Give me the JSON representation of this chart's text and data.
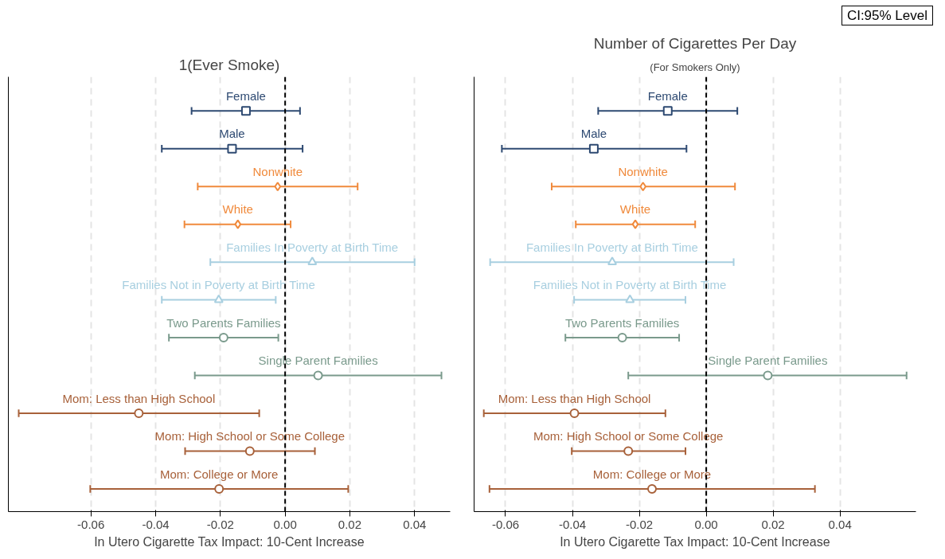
{
  "chart_data": [
    {
      "type": "scatter",
      "orientation": "horizontal",
      "title": "1(Ever Smoke)",
      "xlabel": "In Utero Cigarette Tax Impact: 10-Cent Increase",
      "categories": [
        "Female",
        "Male",
        "Nonwhite",
        "White",
        "Families In Poverty at Birth Time",
        "Families Not in Poverty at Birth Time",
        "Two Parents Families",
        "Single Parent Families",
        "Mom: Less than High School",
        "Mom: High School or Some College",
        "Mom: College or More"
      ],
      "series": [
        {
          "color": "#2e4a72",
          "marker": "square",
          "values": [
            -0.0121,
            -0.0164,
            null,
            null,
            null,
            null,
            null,
            null,
            null,
            null,
            null
          ],
          "errors": [
            [
              -0.0289,
              0.0046
            ],
            [
              -0.0381,
              0.0054
            ],
            null,
            null,
            null,
            null,
            null,
            null,
            null,
            null,
            null
          ]
        },
        {
          "color": "#f08a3c",
          "marker": "diamond",
          "values": [
            null,
            null,
            -0.0023,
            -0.0146,
            null,
            null,
            null,
            null,
            null,
            null,
            null
          ],
          "errors": [
            null,
            null,
            [
              -0.027,
              0.0224
            ],
            [
              -0.0311,
              0.0017
            ],
            null,
            null,
            null,
            null,
            null,
            null,
            null
          ]
        },
        {
          "color": "#a8cfe0",
          "marker": "triangle",
          "values": [
            null,
            null,
            null,
            null,
            0.0084,
            -0.0205,
            null,
            null,
            null,
            null,
            null
          ],
          "errors": [
            null,
            null,
            null,
            null,
            [
              -0.0231,
              0.04
            ],
            [
              -0.0381,
              -0.0029
            ],
            null,
            null,
            null,
            null,
            null
          ]
        },
        {
          "color": "#7a9a8c",
          "marker": "circle",
          "values": [
            null,
            null,
            null,
            null,
            null,
            null,
            -0.019,
            0.0102,
            null,
            null,
            null
          ],
          "errors": [
            null,
            null,
            null,
            null,
            null,
            null,
            [
              -0.0359,
              -0.0021
            ],
            [
              -0.0279,
              0.0483
            ],
            null,
            null,
            null
          ]
        },
        {
          "color": "#a8613a",
          "marker": "circle",
          "values": [
            null,
            null,
            null,
            null,
            null,
            null,
            null,
            null,
            -0.0452,
            -0.0109,
            -0.0204
          ],
          "errors": [
            null,
            null,
            null,
            null,
            null,
            null,
            null,
            null,
            [
              -0.0823,
              -0.008
            ],
            [
              -0.0309,
              0.0092
            ],
            [
              -0.0602,
              0.0195
            ]
          ]
        }
      ],
      "xlim": [
        -0.0855,
        0.051
      ],
      "xticks": [
        {
          "value": -0.06,
          "label": "-0.06"
        },
        {
          "value": -0.04,
          "label": "-0.04"
        },
        {
          "value": -0.02,
          "label": "-0.02"
        },
        {
          "value": 0,
          "label": "0.00"
        },
        {
          "value": 0.02,
          "label": "0.02"
        },
        {
          "value": 0.04,
          "label": "0.04"
        }
      ],
      "ref_lines": [
        {
          "axis": "x",
          "value": 0,
          "color": "#000000",
          "line_style": "dashed"
        }
      ],
      "grid": "x",
      "tick_labels": "x"
    },
    {
      "type": "scatter",
      "orientation": "horizontal",
      "title": "Number of Cigarettes Per Day",
      "subtitle": "(For Smokers Only)",
      "xlabel": "In Utero Cigarette Tax Impact: 10-Cent Increase",
      "annotations": [
        "CI:95% Level"
      ],
      "categories": [
        "Female",
        "Male",
        "Nonwhite",
        "White",
        "Families In Poverty at Birth Time",
        "Families Not in Poverty at Birth Time",
        "Two Parents Families",
        "Single Parent Families",
        "Mom: Less than High School",
        "Mom: High School or Some College",
        "Mom: College or More"
      ],
      "series": [
        {
          "color": "#2e4a72",
          "marker": "square",
          "values": [
            -0.0115,
            -0.0336,
            null,
            null,
            null,
            null,
            null,
            null,
            null,
            null,
            null
          ],
          "errors": [
            [
              -0.0323,
              0.0093
            ],
            [
              -0.0611,
              -0.0059
            ],
            null,
            null,
            null,
            null,
            null,
            null,
            null,
            null,
            null
          ]
        },
        {
          "color": "#f08a3c",
          "marker": "diamond",
          "values": [
            null,
            null,
            -0.0189,
            -0.0212,
            null,
            null,
            null,
            null,
            null,
            null,
            null
          ],
          "errors": [
            null,
            null,
            [
              -0.0462,
              0.0086
            ],
            [
              -0.039,
              -0.0033
            ],
            null,
            null,
            null,
            null,
            null,
            null,
            null
          ]
        },
        {
          "color": "#a8cfe0",
          "marker": "triangle",
          "values": [
            null,
            null,
            null,
            null,
            -0.0281,
            -0.0228,
            null,
            null,
            null,
            null,
            null
          ],
          "errors": [
            null,
            null,
            null,
            null,
            [
              -0.0646,
              0.0082
            ],
            [
              -0.0395,
              -0.0062
            ],
            null,
            null,
            null,
            null,
            null
          ]
        },
        {
          "color": "#7a9a8c",
          "marker": "circle",
          "values": [
            null,
            null,
            null,
            null,
            null,
            null,
            -0.0251,
            0.0184,
            null,
            null,
            null
          ],
          "errors": [
            null,
            null,
            null,
            null,
            null,
            null,
            [
              -0.0421,
              -0.0081
            ],
            [
              -0.0233,
              0.0599
            ],
            null,
            null,
            null
          ]
        },
        {
          "color": "#a8613a",
          "marker": "circle",
          "values": [
            null,
            null,
            null,
            null,
            null,
            null,
            null,
            null,
            -0.0394,
            -0.0233,
            -0.0162
          ],
          "errors": [
            null,
            null,
            null,
            null,
            null,
            null,
            null,
            null,
            [
              -0.0665,
              -0.0122
            ],
            [
              -0.0402,
              -0.0062
            ],
            [
              -0.0648,
              0.0325
            ]
          ]
        }
      ],
      "xlim": [
        -0.0694,
        0.0627
      ],
      "xticks": [
        {
          "value": -0.06,
          "label": "-0.06"
        },
        {
          "value": -0.04,
          "label": "-0.04"
        },
        {
          "value": -0.02,
          "label": "-0.02"
        },
        {
          "value": 0,
          "label": "0.00"
        },
        {
          "value": 0.02,
          "label": "0.02"
        },
        {
          "value": 0.04,
          "label": "0.04"
        }
      ],
      "ref_lines": [
        {
          "axis": "x",
          "value": 0,
          "color": "#000000",
          "line_style": "dashed"
        }
      ],
      "grid": "x",
      "tick_labels": "x"
    }
  ]
}
